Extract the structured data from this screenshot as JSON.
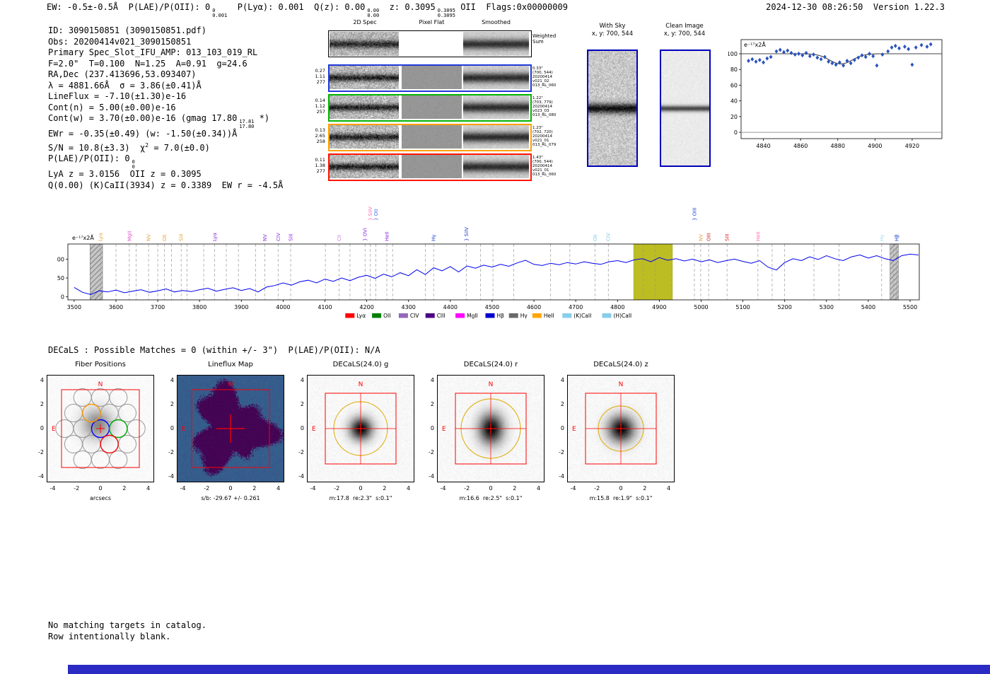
{
  "colors": {
    "accent_blue": "#0000bb",
    "classification_bar": "#2b2bc4",
    "compass": "#ff0000"
  },
  "header": {
    "segments": [
      {
        "t": "EW: -0.5±-0.5Å  P(LAE)/P(OII): 0"
      },
      {
        "stack": [
          "0",
          "0.001"
        ]
      },
      {
        "t": "  P(Lyα): 0.001  Q(z): 0.00"
      },
      {
        "stack": [
          "0.00",
          "0.00"
        ]
      },
      {
        "t": "  z: 0.3095"
      },
      {
        "stack": [
          "0.3095",
          "0.3095"
        ]
      },
      {
        "t": " OII  Flags:0x00000009"
      }
    ],
    "timestamp": "2024-12-30 08:26:50  Version 1.22.3"
  },
  "info": {
    "lines": [
      [
        {
          "t": "ID: 3090150851 (3090150851.pdf)"
        }
      ],
      [
        {
          "t": "Obs: 20200414v021_3090150851"
        }
      ],
      [
        {
          "t": "Primary Spec_Slot_IFU_AMP: 013_103_019_RL"
        }
      ],
      [
        {
          "t": "F=2.0\"  T=0.100  N=1.25  A=0.91  g=24.6"
        }
      ],
      [
        {
          "t": "RA,Dec (237.413696,53.093407)"
        }
      ],
      [
        {
          "t": "λ = 4881.66Å  σ = 3.86(±0.41)Å"
        }
      ],
      [
        {
          "t": "LineFlux = -7.10(±1.30)e-16"
        }
      ],
      [
        {
          "t": "Cont(n) = 5.00(±0.00)e-16"
        }
      ],
      [
        {
          "t": "Cont(w) = 3.70(±0.00)e-16 (gmag 17.80"
        },
        {
          "stack": [
            "17.81",
            "17.80"
          ]
        },
        {
          "t": " *)"
        }
      ],
      [
        {
          "t": "EWr = -0.35(±0.49) (w: -1.50(±0.34))Å"
        }
      ],
      [
        {
          "t": "S/N = 10.8(±3.3)  χ"
        },
        {
          "sup": "2"
        },
        {
          "t": " = 7.0(±0.0)"
        }
      ],
      [
        {
          "t": "P(LAE)/P(OII): 0"
        },
        {
          "stack": [
            "0",
            "0"
          ]
        }
      ],
      [
        {
          "t": "LyA z = 3.0156  OII z = 0.3095"
        }
      ],
      [
        {
          "t": "Q(0.00) (K)CaII(3934) z = 0.3389  EW r = -4.5Å"
        }
      ]
    ]
  },
  "spec2d": {
    "columns": [
      "2D Spec",
      "Pixel Flat",
      "Smoothed"
    ],
    "weighted_label": [
      "Weighted",
      "Sum"
    ],
    "rows": [
      {
        "color": "#2038d8",
        "left": [
          "0.27",
          "1.11",
          "277"
        ],
        "right": [
          "0.33\"",
          "(700, 544)",
          "20200414",
          "v021_02",
          "013_RL_060"
        ]
      },
      {
        "color": "#00b400",
        "left": [
          "0.14",
          "1.12",
          "257"
        ],
        "right": [
          "1.22\"",
          "(703, 779)",
          "20200414",
          "v023_03",
          "013_RL_080"
        ]
      },
      {
        "color": "#ffa000",
        "left": [
          "0.13",
          "2.65",
          "258"
        ],
        "right": [
          "1.23\"",
          "(702, 720)",
          "20200414",
          "v021_01",
          "013_RL_079"
        ]
      },
      {
        "color": "#ff1400",
        "left": [
          "0.11",
          "1.38",
          "277"
        ],
        "right": [
          "1.43\"",
          "(700, 544)",
          "20200414",
          "v021_01",
          "013_RL_060"
        ]
      }
    ]
  },
  "sky_panels": [
    {
      "title": "With Sky",
      "coords": "x, y: 700, 544"
    },
    {
      "title": "Clean Image",
      "coords": "x, y: 700, 544"
    }
  ],
  "chart_data": [
    {
      "type": "scatter",
      "name": "line_fit_zoom",
      "unit_label": "e⁻¹⁷x2Å",
      "xlim": [
        4828,
        4936
      ],
      "ylim": [
        -8,
        118
      ],
      "xticks": [
        4840,
        4860,
        4880,
        4900,
        4920
      ],
      "yticks": [
        0,
        20,
        40,
        60,
        80,
        100
      ],
      "marker_color": "#2a52be",
      "fit_color": "#444444",
      "fit": {
        "continuum": 100,
        "center": 4881.66,
        "sigma": 3.86,
        "depth": 13
      },
      "points": [
        [
          4832,
          91
        ],
        [
          4834,
          93
        ],
        [
          4836,
          90
        ],
        [
          4838,
          92
        ],
        [
          4840,
          89
        ],
        [
          4842,
          94
        ],
        [
          4844,
          96
        ],
        [
          4847,
          103
        ],
        [
          4849,
          105
        ],
        [
          4851,
          102
        ],
        [
          4853,
          104
        ],
        [
          4855,
          101
        ],
        [
          4857,
          99
        ],
        [
          4859,
          100
        ],
        [
          4861,
          98
        ],
        [
          4863,
          101
        ],
        [
          4865,
          97
        ],
        [
          4867,
          99
        ],
        [
          4869,
          95
        ],
        [
          4871,
          93
        ],
        [
          4873,
          96
        ],
        [
          4875,
          90
        ],
        [
          4877,
          88
        ],
        [
          4879,
          86
        ],
        [
          4881,
          89
        ],
        [
          4883,
          85
        ],
        [
          4885,
          91
        ],
        [
          4887,
          88
        ],
        [
          4889,
          92
        ],
        [
          4891,
          95
        ],
        [
          4893,
          98
        ],
        [
          4895,
          96
        ],
        [
          4897,
          100
        ],
        [
          4899,
          97
        ],
        [
          4901,
          85
        ],
        [
          4904,
          99
        ],
        [
          4907,
          103
        ],
        [
          4909,
          108
        ],
        [
          4911,
          110
        ],
        [
          4913,
          107
        ],
        [
          4916,
          109
        ],
        [
          4918,
          106
        ],
        [
          4920,
          86
        ],
        [
          4922,
          108
        ],
        [
          4925,
          111
        ],
        [
          4928,
          109
        ],
        [
          4930,
          112
        ]
      ]
    },
    {
      "type": "line",
      "name": "full_spectrum",
      "unit_label": "e⁻¹⁷x2Å",
      "xlim": [
        3485,
        5522
      ],
      "ylim": [
        -8,
        140
      ],
      "xticks": [
        3500,
        3600,
        3700,
        3800,
        3900,
        4000,
        4100,
        4200,
        4300,
        4400,
        4500,
        4600,
        4700,
        4800,
        4900,
        5000,
        5100,
        5200,
        5300,
        5400,
        5500
      ],
      "yticks": [
        0,
        50,
        100
      ],
      "line_color": "#0000ee",
      "x_start": 3500,
      "x_step": 20,
      "values": [
        25,
        12,
        6,
        16,
        13,
        18,
        11,
        15,
        19,
        12,
        16,
        21,
        13,
        17,
        14,
        19,
        23,
        15,
        20,
        24,
        17,
        22,
        13,
        26,
        30,
        37,
        31,
        40,
        44,
        37,
        47,
        41,
        50,
        43,
        52,
        57,
        49,
        60,
        53,
        64,
        56,
        72,
        59,
        77,
        69,
        80,
        66,
        82,
        76,
        84,
        79,
        86,
        81,
        90,
        97,
        86,
        83,
        89,
        85,
        91,
        87,
        93,
        89,
        86,
        93,
        96,
        91,
        98,
        101,
        93,
        104,
        97,
        101,
        95,
        100,
        93,
        98,
        91,
        96,
        100,
        94,
        89,
        96,
        79,
        71,
        91,
        101,
        96,
        106,
        99,
        109,
        101,
        96,
        106,
        111,
        103,
        109,
        101,
        96,
        109,
        113,
        111
      ],
      "line_markers": [
        {
          "x": 3563,
          "label": "Lyα",
          "color": "#e6a23c"
        },
        {
          "x": 3632,
          "label": "MgII",
          "color": "#e056c8"
        },
        {
          "x": 3678,
          "label": "NV",
          "color": "#e6a23c"
        },
        {
          "x": 3716,
          "label": "OII",
          "color": "#e6a23c"
        },
        {
          "x": 3756,
          "label": "SiII",
          "color": "#e6a23c"
        },
        {
          "x": 3836,
          "label": "Lyα",
          "color": "#8a2be2"
        },
        {
          "x": 3956,
          "label": "NV",
          "color": "#8a2be2"
        },
        {
          "x": 3988,
          "label": "CIV",
          "color": "#8a2be2"
        },
        {
          "x": 4018,
          "label": "SiII",
          "color": "#8a2be2"
        },
        {
          "x": 4134,
          "label": "CII",
          "color": "#c77ddd"
        },
        {
          "x": 4196,
          "label": "} OVI",
          "color": "#8a2be2"
        },
        {
          "x": 4208,
          "label": "} SiIV",
          "color": "#ff69b4",
          "raised": true
        },
        {
          "x": 4222,
          "label": "} OII",
          "color": "#4169e1",
          "raised": true
        },
        {
          "x": 4248,
          "label": "HeII",
          "color": "#8a2be2"
        },
        {
          "x": 4360,
          "label": "Hγ",
          "color": "#1e40c8"
        },
        {
          "x": 4438,
          "label": "} SiIV",
          "color": "#1e40c8"
        },
        {
          "x": 4746,
          "label": "OII",
          "color": "#7ec8e3"
        },
        {
          "x": 4778,
          "label": "CIV",
          "color": "#7ec8e3"
        },
        {
          "x": 4984,
          "label": "} OIII",
          "color": "#1e40c8",
          "raised": true
        },
        {
          "x": 4999,
          "label": "NV",
          "color": "#e6a23c"
        },
        {
          "x": 5018,
          "label": "OIII",
          "color": "#d62728"
        },
        {
          "x": 5062,
          "label": "SIII",
          "color": "#d62728"
        },
        {
          "x": 5136,
          "label": "HeII",
          "color": "#ff69b4"
        },
        {
          "x": 5432,
          "label": "Hγ",
          "color": "#9adcf0"
        },
        {
          "x": 5468,
          "label": "Hβ",
          "color": "#1e40c8"
        }
      ],
      "extra_dashes": [
        3600,
        3648,
        3700,
        3733,
        3770,
        3810,
        3864,
        3893,
        3934,
        4101,
        4160,
        4262,
        4340,
        4472,
        4502,
        4552,
        4640,
        4686,
        4861,
        4890,
        4930,
        5170,
        5200,
        5270,
        5330,
        5460
      ],
      "regions": [
        {
          "x0": 3538,
          "x1": 3568,
          "style": "hatch"
        },
        {
          "x0": 4838,
          "x1": 4932,
          "style": "band",
          "color": "#bcbd22"
        },
        {
          "x0": 5452,
          "x1": 5472,
          "style": "hatch"
        }
      ],
      "legend": [
        {
          "label": "Lyα",
          "color": "#ff0000"
        },
        {
          "label": "OII",
          "color": "#008000"
        },
        {
          "label": "CIV",
          "color": "#9467bd"
        },
        {
          "label": "CIII",
          "color": "#4b0082"
        },
        {
          "label": "MgII",
          "color": "#ff00ff"
        },
        {
          "label": "Hβ",
          "color": "#0000cd"
        },
        {
          "label": "Hγ",
          "color": "#696969"
        },
        {
          "label": "HeII",
          "color": "#ffa500"
        },
        {
          "label": "(K)CaII",
          "color": "#87ceeb"
        },
        {
          "label": "(H)CaII",
          "color": "#87ceeb"
        }
      ]
    }
  ],
  "decals": {
    "match_line": "DECaLS : Possible Matches = 0 (within +/- 3\")  P(LAE)/P(OII): N/A"
  },
  "cutouts": {
    "ticks": [
      -4,
      -2,
      0,
      2,
      4
    ],
    "compass": {
      "north": "N",
      "east": "E"
    },
    "panels": [
      {
        "title": "Fiber Positions",
        "xlabel": "arcsecs",
        "caption": "",
        "type": "fiber"
      },
      {
        "title": "Lineflux Map",
        "caption": "s/b: -29.67 +/- 0.261",
        "type": "lineflux"
      },
      {
        "title": "DECaLS(24.0) g",
        "caption": "m:17.8  re:2.3\"  s:0.1\"",
        "type": "image"
      },
      {
        "title": "DECaLS(24.0) r",
        "caption": "m:16.6  re:2.5\"  s:0.1\"",
        "type": "image"
      },
      {
        "title": "DECaLS(24.0) z",
        "caption": "m:15.8  re:1.9\"  s:0.1\"",
        "type": "image"
      }
    ]
  },
  "footer": {
    "lines": [
      "No matching targets in catalog.",
      "Row intentionally blank."
    ]
  }
}
